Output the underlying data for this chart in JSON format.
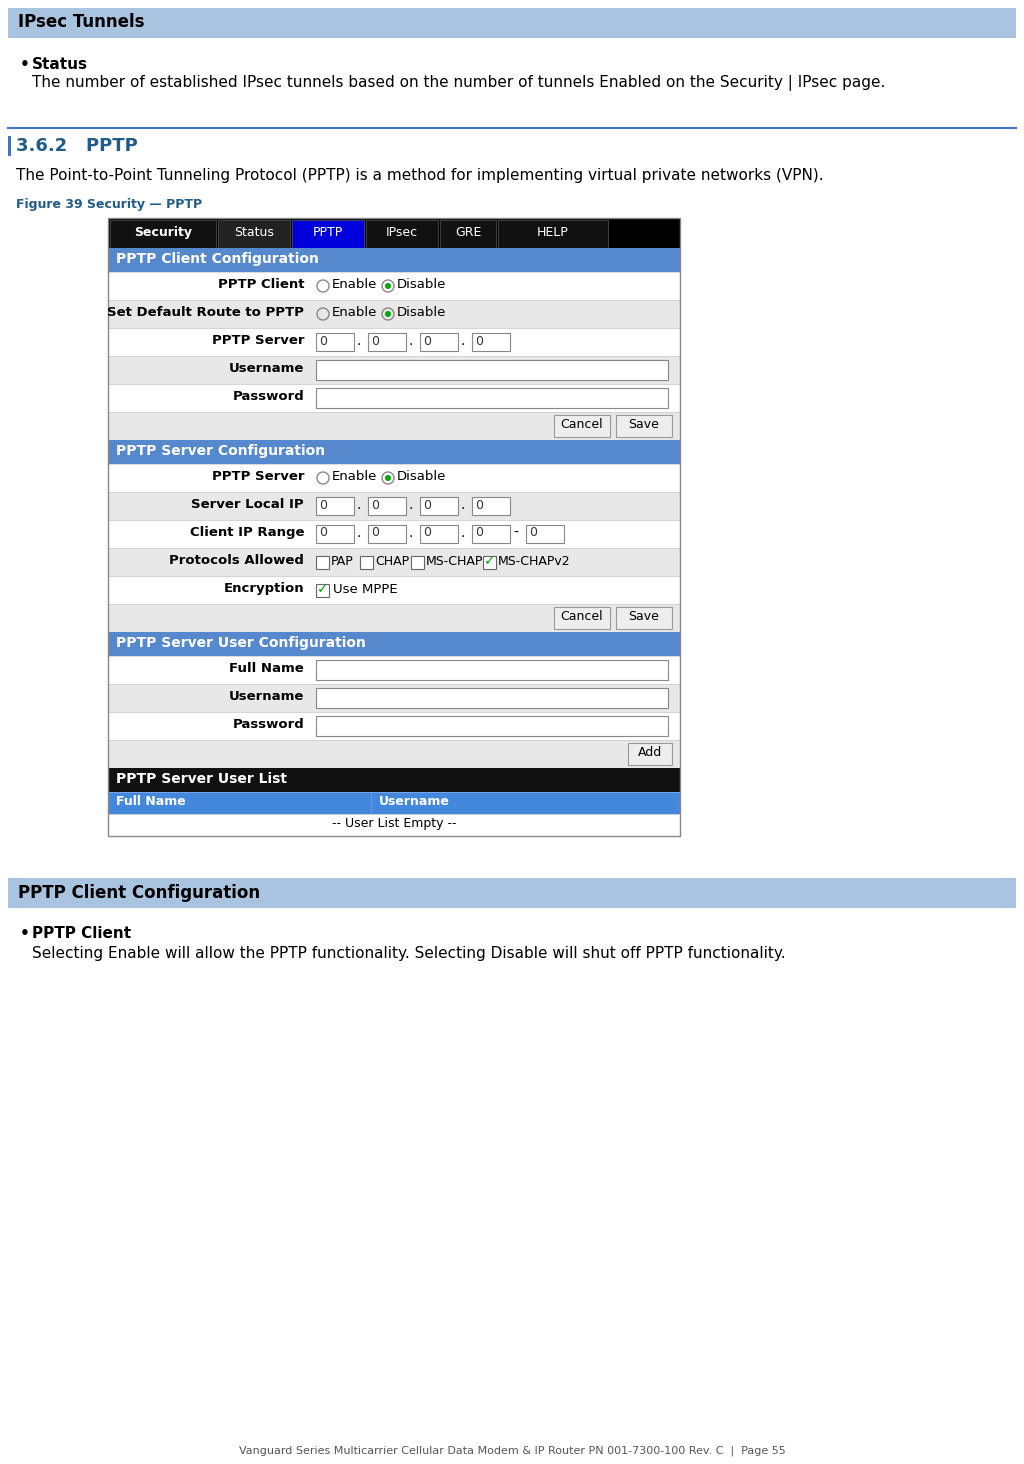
{
  "page_bg": "#ffffff",
  "header_bg": "#a8c4e0",
  "header_text": "IPsec Tunnels",
  "header_text_color": "#000000",
  "header_font_size": 12,
  "section_line_color": "#4472c4",
  "section_title": "3.6.2   PPTP",
  "section_title_color": "#1f5c8b",
  "section_title_font_size": 13,
  "body_text_color": "#000000",
  "body_font_size": 11,
  "bullet_color": "#000000",
  "status_bullet": "Status",
  "status_text": "The number of established IPsec tunnels based on the number of tunnels Enabled on the Security | IPsec page.",
  "pptp_intro": "The Point-to-Point Tunneling Protocol (PPTP) is a method for implementing virtual private networks (VPN).",
  "figure_label": "Figure 39 Security — PPTP",
  "figure_label_color": "#1f5c8b",
  "figure_label_font_size": 9,
  "section2_header_bg": "#a8c4e0",
  "section2_header_text": "PPTP Client Configuration",
  "section2_header_text_color": "#000000",
  "pptp_client_bullet": "PPTP Client",
  "pptp_client_text": "Selecting Enable will allow the PPTP functionality. Selecting Disable will shut off PPTP functionality.",
  "footer_text": "Vanguard Series Multicarrier Cellular Data Modem & IP Router PN 001-7300-100 Rev. C  |  Page 55",
  "footer_color": "#555555",
  "footer_font_size": 8,
  "nav_tabs": [
    "Security",
    "Status",
    "PPTP",
    "IPsec",
    "GRE",
    "HELP"
  ],
  "nav_tab_bg_colors": [
    "#111111",
    "#222222",
    "#0000ee",
    "#111111",
    "#111111",
    "#111111"
  ],
  "nav_active": "PPTP",
  "ui_header_bg": "#5588cc",
  "ui_header_text_color": "#ffffff",
  "ui_row_odd": "#e8e8e8",
  "ui_row_even": "#ffffff",
  "ui_border": "#aaaaaa",
  "ui_label_color": "#000000",
  "ui_list_header_bg": "#111111",
  "ui_col_header_bg": "#4488dd",
  "radio_outer": "#888888",
  "radio_inner": "#00aa00",
  "checkbox_check": "#00aa00",
  "button_bg": "#eeeeee",
  "button_border": "#999999"
}
